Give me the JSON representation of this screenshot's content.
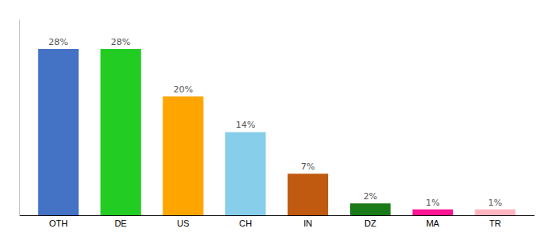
{
  "chart_data": {
    "type": "bar",
    "categories": [
      "OTH",
      "DE",
      "US",
      "CH",
      "IN",
      "DZ",
      "MA",
      "TR"
    ],
    "values": [
      28,
      28,
      20,
      14,
      7,
      2,
      1,
      1
    ],
    "value_labels": [
      "28%",
      "28%",
      "20%",
      "14%",
      "7%",
      "2%",
      "1%",
      "1%"
    ],
    "colors": [
      "#4472C4",
      "#22CC22",
      "#FFA500",
      "#87CEEB",
      "#C05A10",
      "#1A7A1A",
      "#FF1493",
      "#FFB6C1"
    ],
    "ylim": [
      0,
      33
    ],
    "data_labels": true,
    "tick_labels": "x"
  }
}
